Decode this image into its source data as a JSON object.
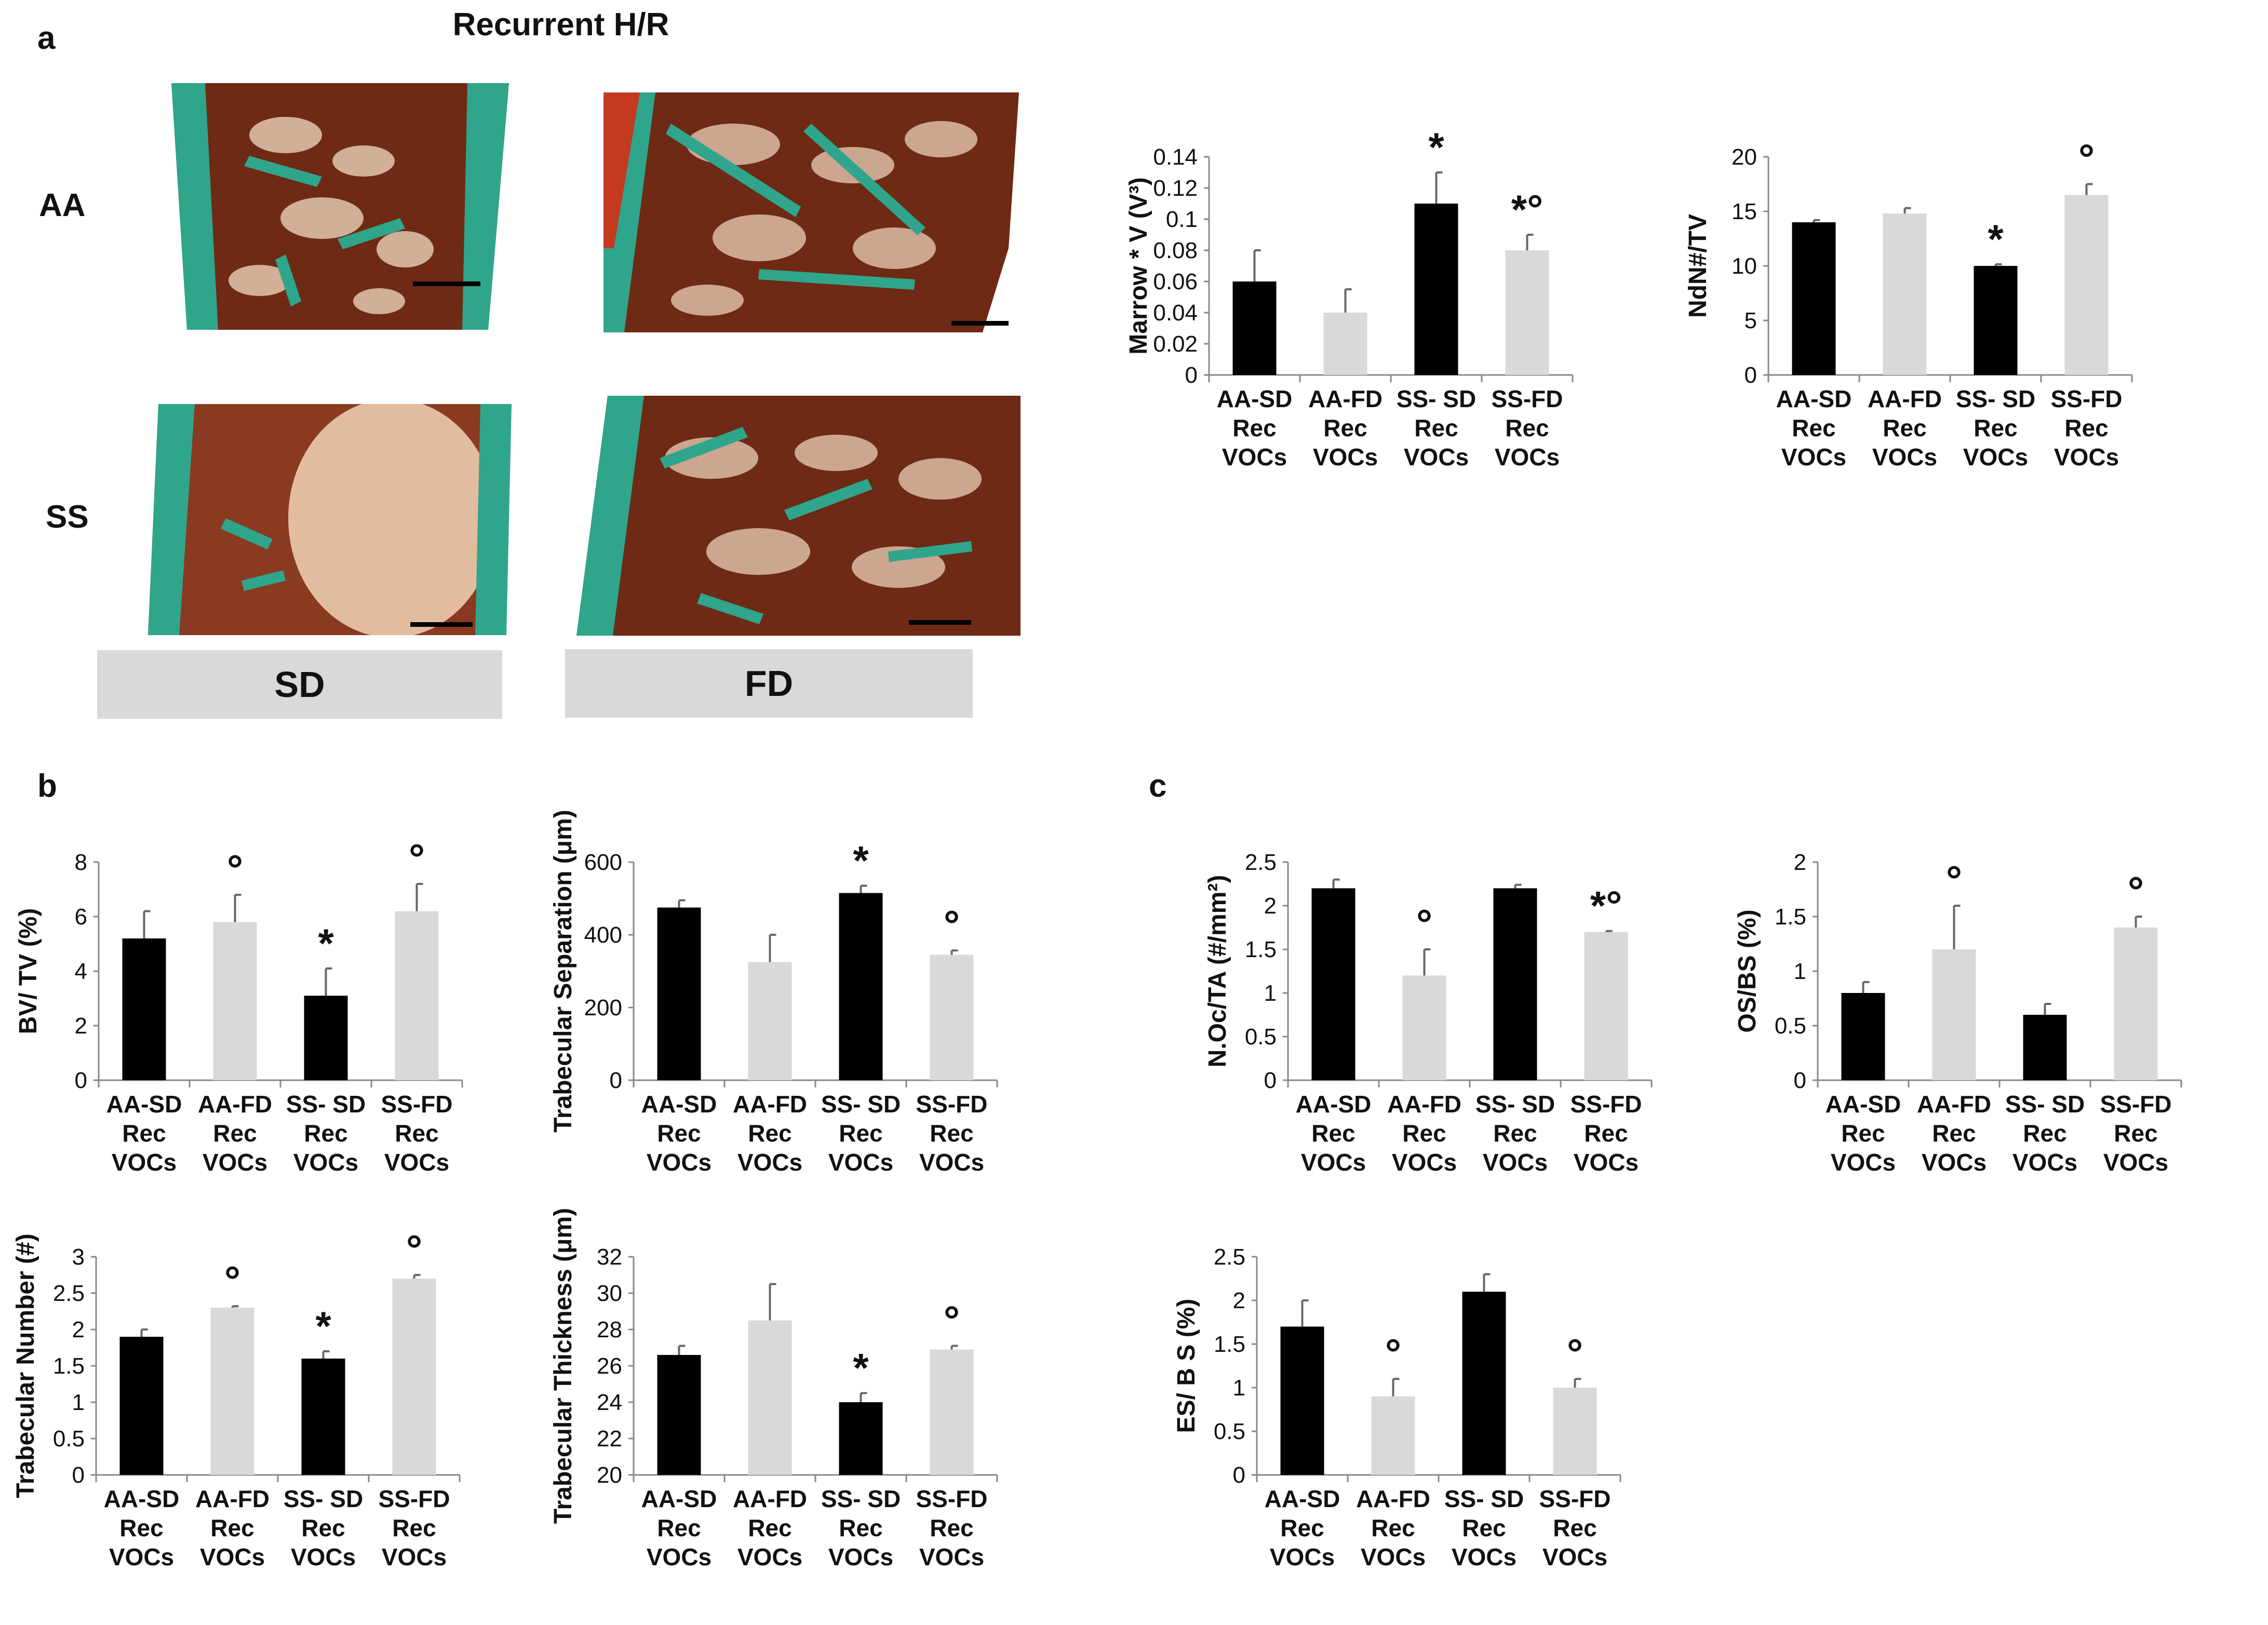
{
  "figure": {
    "panel_labels": {
      "a": "a",
      "b": "b",
      "c": "c"
    },
    "title": "Recurrent H/R",
    "row_labels": [
      "AA",
      "SS"
    ],
    "column_labels": [
      "SD",
      "FD"
    ]
  },
  "colors": {
    "sd_bar": "#000000",
    "fd_bar": "#d9d9d9",
    "tissue": "#6e2a14",
    "trabecula": "#2fa58c",
    "scale_bar": "#000000"
  },
  "icons": {
    "significance_vs_aa": "asterisk",
    "significance_vs_sd": "open-circle"
  },
  "chart_data": [
    {
      "id": "marrow",
      "type": "bar",
      "ylabel": "Marrow * V (V³)",
      "categories": [
        [
          "AA-SD",
          "Rec",
          "VOCs"
        ],
        [
          "AA-FD",
          "Rec",
          "VOCs"
        ],
        [
          "SS- SD",
          "Rec",
          "VOCs"
        ],
        [
          "SS-FD",
          "Rec",
          "VOCs"
        ]
      ],
      "values": [
        0.06,
        0.04,
        0.11,
        0.08
      ],
      "errors": [
        0.02,
        0.015,
        0.02,
        0.01
      ],
      "ylim": [
        0,
        0.14
      ],
      "yticks": [
        "0",
        "0.02",
        "0.04",
        "0.06",
        "0.08",
        "0.1",
        "0.12",
        "0.14"
      ],
      "annotations": [
        [],
        [],
        [
          "*"
        ],
        [
          "*",
          "°"
        ]
      ]
    },
    {
      "id": "ndn",
      "type": "bar",
      "ylabel": "NdN#/TV",
      "categories": [
        [
          "AA-SD",
          "Rec",
          "VOCs"
        ],
        [
          "AA-FD",
          "Rec",
          "VOCs"
        ],
        [
          "SS- SD",
          "Rec",
          "VOCs"
        ],
        [
          "SS-FD",
          "Rec",
          "VOCs"
        ]
      ],
      "values": [
        14,
        14.8,
        10,
        16.5
      ],
      "errors": [
        0.2,
        0.5,
        0.15,
        1.0
      ],
      "ylim": [
        0,
        20
      ],
      "yticks": [
        "0",
        "5",
        "10",
        "15",
        "20"
      ],
      "annotations": [
        [],
        [],
        [
          "*"
        ],
        [
          "°"
        ]
      ]
    },
    {
      "id": "bvtv",
      "type": "bar",
      "ylabel": "BV/ TV (%)",
      "categories": [
        [
          "AA-SD",
          "Rec",
          "VOCs"
        ],
        [
          "AA-FD",
          "Rec",
          "VOCs"
        ],
        [
          "SS- SD",
          "Rec",
          "VOCs"
        ],
        [
          "SS-FD",
          "Rec",
          "VOCs"
        ]
      ],
      "values": [
        5.2,
        5.8,
        3.1,
        6.2
      ],
      "errors": [
        1.0,
        1.0,
        1.0,
        1.0
      ],
      "ylim": [
        0,
        8
      ],
      "yticks": [
        "0",
        "2",
        "4",
        "6",
        "8"
      ],
      "annotations": [
        [],
        [
          "°"
        ],
        [
          "*"
        ],
        [
          "°"
        ]
      ]
    },
    {
      "id": "tbsep",
      "type": "bar",
      "ylabel": "Trabecular Separation (μm)",
      "categories": [
        [
          "AA-SD",
          "Rec",
          "VOCs"
        ],
        [
          "AA-FD",
          "Rec",
          "VOCs"
        ],
        [
          "SS- SD",
          "Rec",
          "VOCs"
        ],
        [
          "SS-FD",
          "Rec",
          "VOCs"
        ]
      ],
      "values": [
        475,
        325,
        515,
        345
      ],
      "errors": [
        20,
        75,
        20,
        12
      ],
      "ylim": [
        0,
        600
      ],
      "yticks": [
        "0",
        "200",
        "400",
        "600"
      ],
      "annotations": [
        [],
        [],
        [
          "*"
        ],
        [
          "°"
        ]
      ]
    },
    {
      "id": "tbn",
      "type": "bar",
      "ylabel": "Trabecular Number (#)",
      "categories": [
        [
          "AA-SD",
          "Rec",
          "VOCs"
        ],
        [
          "AA-FD",
          "Rec",
          "VOCs"
        ],
        [
          "SS- SD",
          "Rec",
          "VOCs"
        ],
        [
          "SS-FD",
          "Rec",
          "VOCs"
        ]
      ],
      "values": [
        1.9,
        2.3,
        1.6,
        2.7
      ],
      "errors": [
        0.1,
        0.02,
        0.1,
        0.05
      ],
      "ylim": [
        0,
        3
      ],
      "yticks": [
        "0",
        "0.5",
        "1",
        "1.5",
        "2",
        "2.5",
        "3"
      ],
      "annotations": [
        [],
        [
          "°"
        ],
        [
          "*"
        ],
        [
          "°"
        ]
      ]
    },
    {
      "id": "tbth",
      "type": "bar",
      "ylabel": "Trabecular Thickness (μm)",
      "categories": [
        [
          "AA-SD",
          "Rec",
          "VOCs"
        ],
        [
          "AA-FD",
          "Rec",
          "VOCs"
        ],
        [
          "SS- SD",
          "Rec",
          "VOCs"
        ],
        [
          "SS-FD",
          "Rec",
          "VOCs"
        ]
      ],
      "values": [
        26.6,
        28.5,
        24.0,
        26.9
      ],
      "errors": [
        0.5,
        2.0,
        0.5,
        0.2
      ],
      "ylim": [
        20,
        32
      ],
      "yticks": [
        "20",
        "22",
        "24",
        "26",
        "28",
        "30",
        "32"
      ],
      "annotations": [
        [],
        [],
        [
          "*"
        ],
        [
          "°"
        ]
      ]
    },
    {
      "id": "noc",
      "type": "bar",
      "ylabel": "N.Oc/TA (#/mm²)",
      "categories": [
        [
          "AA-SD",
          "Rec",
          "VOCs"
        ],
        [
          "AA-FD",
          "Rec",
          "VOCs"
        ],
        [
          "SS- SD",
          "Rec",
          "VOCs"
        ],
        [
          "SS-FD",
          "Rec",
          "VOCs"
        ]
      ],
      "values": [
        2.2,
        1.2,
        2.2,
        1.7
      ],
      "errors": [
        0.1,
        0.3,
        0.04,
        0.01
      ],
      "ylim": [
        0,
        2.5
      ],
      "yticks": [
        "0",
        "0.5",
        "1",
        "1.5",
        "2",
        "2.5"
      ],
      "annotations": [
        [],
        [
          "°"
        ],
        [],
        [
          "*",
          "°"
        ]
      ]
    },
    {
      "id": "osbs",
      "type": "bar",
      "ylabel": "OS/BS (%)",
      "categories": [
        [
          "AA-SD",
          "Rec",
          "VOCs"
        ],
        [
          "AA-FD",
          "Rec",
          "VOCs"
        ],
        [
          "SS- SD",
          "Rec",
          "VOCs"
        ],
        [
          "SS-FD",
          "Rec",
          "VOCs"
        ]
      ],
      "values": [
        0.8,
        1.2,
        0.6,
        1.4
      ],
      "errors": [
        0.1,
        0.4,
        0.1,
        0.1
      ],
      "ylim": [
        0,
        2
      ],
      "yticks": [
        "0",
        "0.5",
        "1",
        "1.5",
        "2"
      ],
      "annotations": [
        [],
        [
          "°"
        ],
        [],
        [
          "°"
        ]
      ]
    },
    {
      "id": "esbs",
      "type": "bar",
      "ylabel": "ES/ B S (%)",
      "categories": [
        [
          "AA-SD",
          "Rec",
          "VOCs"
        ],
        [
          "AA-FD",
          "Rec",
          "VOCs"
        ],
        [
          "SS- SD",
          "Rec",
          "VOCs"
        ],
        [
          "SS-FD",
          "Rec",
          "VOCs"
        ]
      ],
      "values": [
        1.7,
        0.9,
        2.1,
        1.0
      ],
      "errors": [
        0.3,
        0.2,
        0.2,
        0.1
      ],
      "ylim": [
        0,
        2.5
      ],
      "yticks": [
        "0",
        "0.5",
        "1",
        "1.5",
        "2",
        "2.5"
      ],
      "annotations": [
        [],
        [
          "°"
        ],
        [],
        [
          "°"
        ]
      ]
    }
  ]
}
